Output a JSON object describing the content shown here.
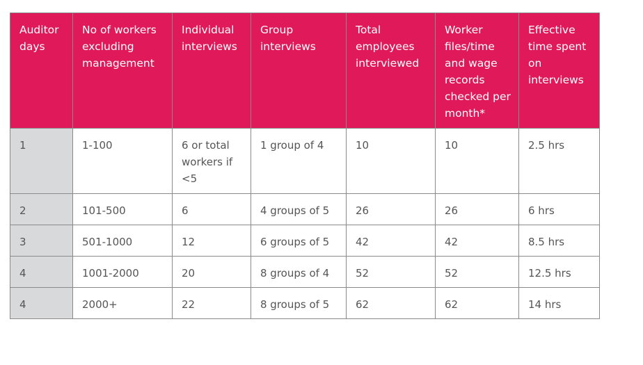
{
  "table": {
    "header": [
      "Auditor days",
      "No of workers excluding management",
      "Individual interviews",
      "Group interviews",
      "Total employees interviewed",
      "Worker files/time and wage records checked per month*",
      "Effective time spent on interviews"
    ],
    "rows": [
      [
        "1",
        "1-100",
        "6 or total workers if <5",
        "1 group of 4",
        "10",
        "10",
        "2.5 hrs"
      ],
      [
        "2",
        "101-500",
        "6",
        "4 groups of 5",
        "26",
        "26",
        "6 hrs"
      ],
      [
        "3",
        "501-1000",
        "12",
        "6 groups of 5",
        "42",
        "42",
        "8.5 hrs"
      ],
      [
        "4",
        "1001-2000",
        "20",
        "8 groups of 4",
        "52",
        "52",
        "12.5 hrs"
      ],
      [
        "4",
        "2000+",
        "22",
        "8 groups of 5",
        "62",
        "62",
        "14 hrs"
      ]
    ]
  }
}
